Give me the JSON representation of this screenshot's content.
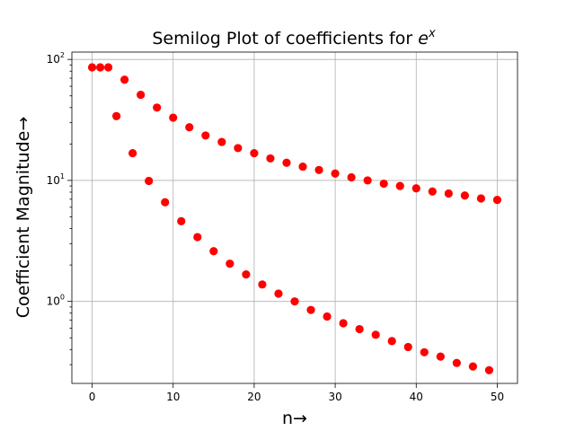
{
  "chart_data": {
    "type": "scatter",
    "title_main": "Semilog Plot of coefficients for ",
    "title_math": "e",
    "title_sup": "x",
    "xlabel": "n→",
    "ylabel": "Coefficient Magnitude→",
    "yscale": "log",
    "xlim": [
      -2.5,
      52.5
    ],
    "ylim": [
      0.21,
      115
    ],
    "grid": true,
    "marker_color": "#ff0000",
    "x_ticks": [
      0,
      10,
      20,
      30,
      40,
      50
    ],
    "y_ticks": [
      {
        "value": 1,
        "base": "10",
        "exp": "0"
      },
      {
        "value": 10,
        "base": "10",
        "exp": "1"
      },
      {
        "value": 100,
        "base": "10",
        "exp": "2"
      }
    ],
    "series": [
      {
        "x": [
          0,
          1,
          2,
          3,
          4,
          5,
          6,
          7,
          8,
          9,
          10,
          11,
          12,
          13,
          14,
          15,
          16,
          17,
          18,
          19,
          20,
          21,
          22,
          23,
          24,
          25,
          26,
          27,
          28,
          29,
          30,
          31,
          32,
          33,
          34,
          35,
          36,
          37,
          38,
          39,
          40,
          41,
          42,
          43,
          44,
          45,
          46,
          47,
          48,
          49,
          50
        ],
        "y": [
          86,
          86,
          86,
          34,
          68,
          16.8,
          51,
          9.9,
          40,
          6.6,
          33,
          4.6,
          27.5,
          3.4,
          23.5,
          2.6,
          20.8,
          2.05,
          18.5,
          1.67,
          16.8,
          1.38,
          15.2,
          1.16,
          14,
          1.0,
          13,
          0.85,
          12.2,
          0.75,
          11.4,
          0.66,
          10.6,
          0.59,
          10,
          0.53,
          9.4,
          0.47,
          9,
          0.42,
          8.6,
          0.38,
          8.1,
          0.35,
          7.8,
          0.31,
          7.5,
          0.29,
          7.1,
          0.27,
          6.9
        ]
      }
    ]
  }
}
